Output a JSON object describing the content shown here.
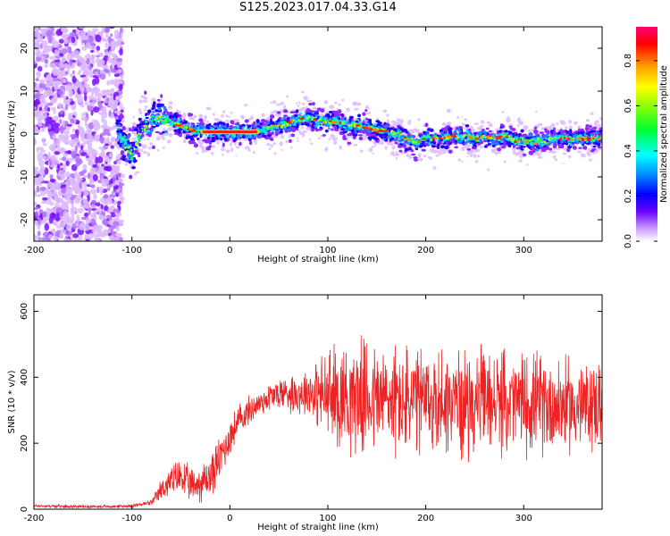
{
  "title": "S125.2023.017.04.33.G14",
  "chart_data": [
    {
      "type": "heatmap",
      "xlabel": "Height of straight line (km)",
      "ylabel": "Frequency (Hz)",
      "xlim": [
        -200,
        380
      ],
      "ylim": [
        -25,
        25
      ],
      "xticks": [
        -200,
        -100,
        0,
        100,
        200,
        300
      ],
      "yticks": [
        -20,
        -10,
        0,
        10,
        20
      ],
      "colorbar": {
        "label": "Normalized spectral amplitude",
        "range": [
          0,
          0.95
        ],
        "ticks": [
          0.0,
          0.2,
          0.4,
          0.6,
          0.8
        ]
      },
      "ridge": {
        "x": [
          -120,
          -110,
          -100,
          -90,
          -80,
          -70,
          -60,
          -50,
          -40,
          -30,
          -20,
          -10,
          0,
          10,
          20,
          30,
          40,
          50,
          60,
          70,
          80,
          90,
          100,
          110,
          120,
          130,
          140,
          150,
          160,
          170,
          180,
          190,
          200,
          210,
          220,
          230,
          240,
          250,
          260,
          270,
          280,
          290,
          300,
          310,
          320,
          330,
          340,
          350,
          360,
          370,
          380
        ],
        "y": [
          4,
          -1,
          -5,
          1,
          3,
          4,
          3,
          2,
          1,
          0.5,
          0.5,
          0.5,
          0.5,
          0.5,
          0.5,
          1,
          1.5,
          2,
          2.5,
          3.5,
          4,
          3,
          3,
          3,
          2,
          2,
          1.5,
          1,
          0.5,
          0,
          -1,
          -2,
          -1,
          -1,
          -1,
          -0.5,
          -0.5,
          -1,
          -0.5,
          -1,
          -0.5,
          -1.5,
          -1.5,
          -2,
          -1.5,
          -1,
          -1,
          -1,
          -1,
          -1,
          -1
        ]
      },
      "noise_region_x": [
        -200,
        -110
      ],
      "high_amplitude_segment_x": [
        -30,
        30
      ]
    },
    {
      "type": "line",
      "xlabel": "Height of straight line (km)",
      "ylabel": "SNR (10 * v/v)",
      "xlim": [
        -200,
        380
      ],
      "ylim": [
        0,
        650
      ],
      "xticks": [
        -200,
        -100,
        0,
        100,
        200,
        300
      ],
      "yticks": [
        0,
        200,
        400,
        600
      ],
      "series": [
        {
          "color": "#ee2222",
          "x": [
            -200,
            -150,
            -120,
            -100,
            -90,
            -80,
            -75,
            -70,
            -60,
            -50,
            -40,
            -30,
            -20,
            -10,
            0,
            10,
            20,
            30,
            40,
            50,
            60,
            70,
            80,
            90,
            100,
            120,
            140,
            160,
            180,
            200,
            220,
            240,
            260,
            280,
            300,
            320,
            340,
            360,
            380
          ],
          "y": [
            10,
            8,
            8,
            10,
            15,
            20,
            35,
            60,
            85,
            100,
            70,
            80,
            100,
            155,
            220,
            270,
            300,
            320,
            340,
            350,
            355,
            350,
            360,
            350,
            340,
            345,
            340,
            335,
            325,
            320,
            330,
            320,
            330,
            320,
            325,
            320,
            315,
            310,
            320
          ],
          "spread": [
            6,
            5,
            5,
            6,
            8,
            10,
            25,
            40,
            55,
            70,
            60,
            70,
            80,
            80,
            70,
            60,
            50,
            50,
            55,
            60,
            70,
            75,
            90,
            120,
            180,
            200,
            200,
            200,
            200,
            200,
            190,
            190,
            180,
            180,
            180,
            180,
            170,
            160,
            160
          ]
        }
      ]
    }
  ]
}
